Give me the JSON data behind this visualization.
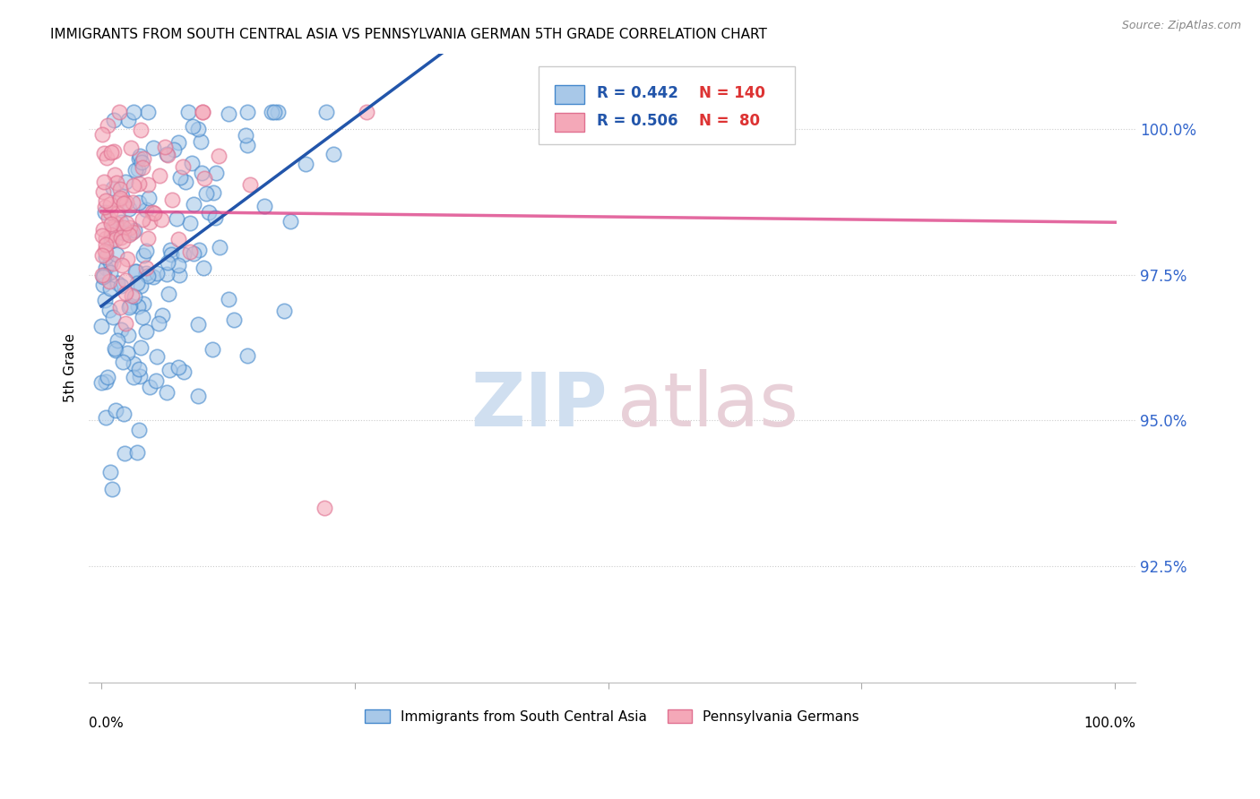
{
  "title": "IMMIGRANTS FROM SOUTH CENTRAL ASIA VS PENNSYLVANIA GERMAN 5TH GRADE CORRELATION CHART",
  "source": "Source: ZipAtlas.com",
  "ylabel": "5th Grade",
  "ytick_vals": [
    0.925,
    0.95,
    0.975,
    1.0
  ],
  "ytick_labels": [
    "92.5%",
    "95.0%",
    "97.5%",
    "100.0%"
  ],
  "blue_fill": "#a8c8e8",
  "blue_edge": "#4488cc",
  "pink_fill": "#f4a8b8",
  "pink_edge": "#e07090",
  "line_blue_color": "#2255aa",
  "line_pink_color": "#dd4488",
  "r_blue": 0.442,
  "n_blue": 140,
  "r_pink": 0.506,
  "n_pink": 80,
  "watermark_zip_color": "#d0dff0",
  "watermark_atlas_color": "#e8d0d8"
}
